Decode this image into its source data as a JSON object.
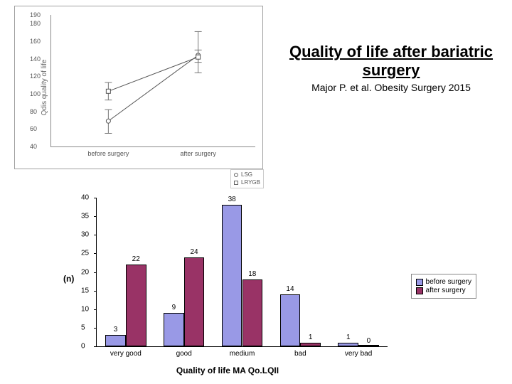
{
  "title": {
    "main": "Quality of life after bariatric surgery",
    "sub": "Major P. et al. Obesity Surgery 2015"
  },
  "line_chart": {
    "type": "line-errorbar",
    "ylabel": "Qdis quality of life",
    "ylim": [
      40,
      190
    ],
    "ytick_step": 20,
    "yticks": [
      40,
      60,
      80,
      100,
      120,
      140,
      160,
      180,
      190
    ],
    "xcats": [
      "before surgery",
      "after surgery"
    ],
    "series": [
      {
        "name": "LSG",
        "marker": "circle",
        "color": "#555555",
        "points": [
          {
            "y": 69,
            "err_lo": 14,
            "err_hi": 13
          },
          {
            "y": 144,
            "err_lo": 20,
            "err_hi": 27
          }
        ]
      },
      {
        "name": "LRYGB",
        "marker": "square",
        "color": "#555555",
        "points": [
          {
            "y": 103,
            "err_lo": 10,
            "err_hi": 10
          },
          {
            "y": 142,
            "err_lo": 6,
            "err_hi": 8
          }
        ]
      }
    ],
    "background": "#ffffff",
    "axis_color": "#888888",
    "label_fontsize": 9
  },
  "bar_chart": {
    "type": "grouped-bar",
    "ylabel": "(n)",
    "xtitle": "Quality of life  MA Qo.LQII",
    "ylim": [
      0,
      40
    ],
    "yticks": [
      0,
      5,
      10,
      15,
      20,
      25,
      30,
      35,
      40
    ],
    "categories": [
      "very good",
      "good",
      "medium",
      "bad",
      "very bad"
    ],
    "series": [
      {
        "name": "before surgery",
        "color": "#9999e6",
        "values": [
          3,
          9,
          38,
          14,
          1
        ]
      },
      {
        "name": "after surgery",
        "color": "#993366",
        "values": [
          22,
          24,
          18,
          1,
          0
        ]
      }
    ],
    "bar_group_width": 0.7,
    "background": "#ffffff",
    "axis_color": "#000000",
    "label_fontsize": 10
  }
}
